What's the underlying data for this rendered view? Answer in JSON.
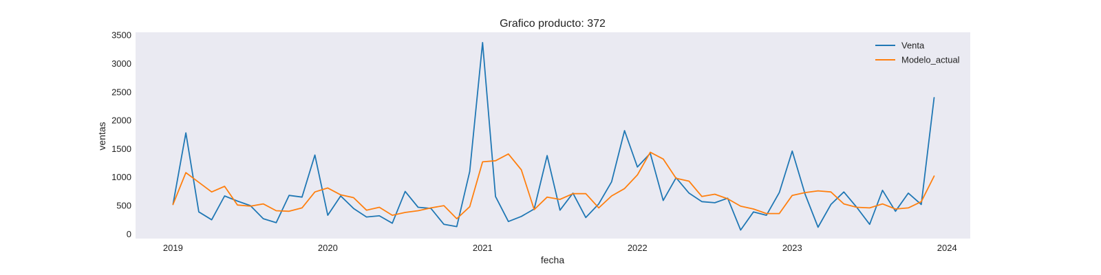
{
  "chart_data": {
    "type": "line",
    "title": "Grafico producto: 372",
    "xlabel": "fecha",
    "ylabel": "ventas",
    "x_start": "2019-01",
    "x_frequency": "monthly",
    "xlim": [
      "2018-10",
      "2024-03"
    ],
    "ylim": [
      -80,
      3550
    ],
    "xticks": [
      {
        "date": "2019-01",
        "label": "2019"
      },
      {
        "date": "2020-01",
        "label": "2020"
      },
      {
        "date": "2021-01",
        "label": "2021"
      },
      {
        "date": "2022-01",
        "label": "2022"
      },
      {
        "date": "2023-01",
        "label": "2023"
      },
      {
        "date": "2024-01",
        "label": "2024"
      }
    ],
    "yticks": [
      0,
      500,
      1000,
      1500,
      2000,
      2500,
      3000,
      3500
    ],
    "grid": false,
    "background": "#eaeaf2",
    "legend_position": "top-right",
    "series": [
      {
        "name": "Venta",
        "color": "#1f77b4",
        "values": [
          520,
          1780,
          390,
          250,
          670,
          580,
          500,
          270,
          200,
          680,
          650,
          1390,
          330,
          670,
          450,
          300,
          320,
          190,
          750,
          470,
          450,
          170,
          130,
          1100,
          3370,
          660,
          220,
          310,
          440,
          1380,
          420,
          720,
          290,
          530,
          920,
          1820,
          1180,
          1420,
          590,
          990,
          720,
          570,
          550,
          630,
          70,
          390,
          330,
          730,
          1460,
          700,
          120,
          520,
          740,
          470,
          170,
          770,
          400,
          720,
          520,
          2400
        ]
      },
      {
        "name": "Modelo_actual",
        "color": "#ff7f0e",
        "values": [
          520,
          1080,
          910,
          740,
          840,
          510,
          490,
          530,
          410,
          400,
          460,
          740,
          810,
          690,
          640,
          420,
          470,
          330,
          380,
          410,
          460,
          500,
          270,
          480,
          1270,
          1290,
          1410,
          1130,
          430,
          650,
          610,
          710,
          710,
          460,
          670,
          800,
          1040,
          1440,
          1320,
          980,
          930,
          660,
          700,
          620,
          490,
          440,
          360,
          360,
          680,
          730,
          760,
          740,
          530,
          470,
          460,
          530,
          440,
          460,
          570,
          1020
        ]
      }
    ]
  }
}
